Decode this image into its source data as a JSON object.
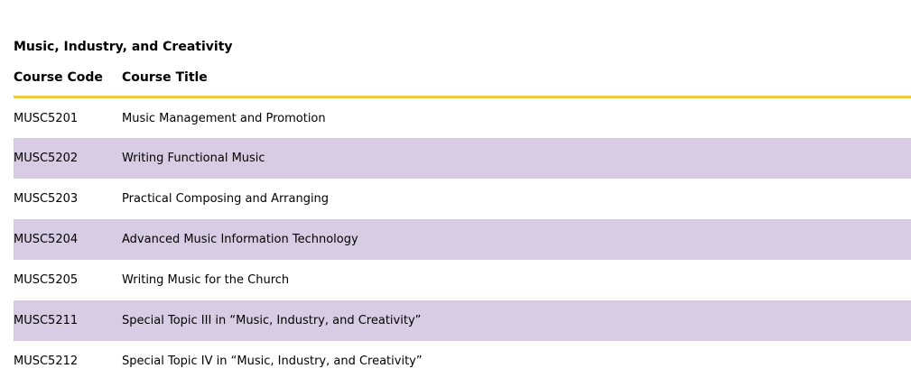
{
  "section": {
    "title": "Music, Industry, and Creativity"
  },
  "table": {
    "headers": [
      "Course Code",
      "Course Title"
    ],
    "rows": [
      {
        "code": "MUSC5201",
        "title": "Music Management and Promotion"
      },
      {
        "code": "MUSC5202",
        "title": "Writing Functional Music"
      },
      {
        "code": "MUSC5203",
        "title": "Practical Composing and Arranging"
      },
      {
        "code": "MUSC5204",
        "title": "Advanced Music Information Technology"
      },
      {
        "code": "MUSC5205",
        "title": "Writing Music for the Church"
      },
      {
        "code": "MUSC5211",
        "title": "Special Topic III in “Music, Industry, and Creativity”"
      },
      {
        "code": "MUSC5212",
        "title": "Special Topic IV in “Music, Industry, and Creativity”"
      }
    ]
  },
  "colors": {
    "header_rule": "#f2c744",
    "alt_row": "#d7cce3"
  }
}
